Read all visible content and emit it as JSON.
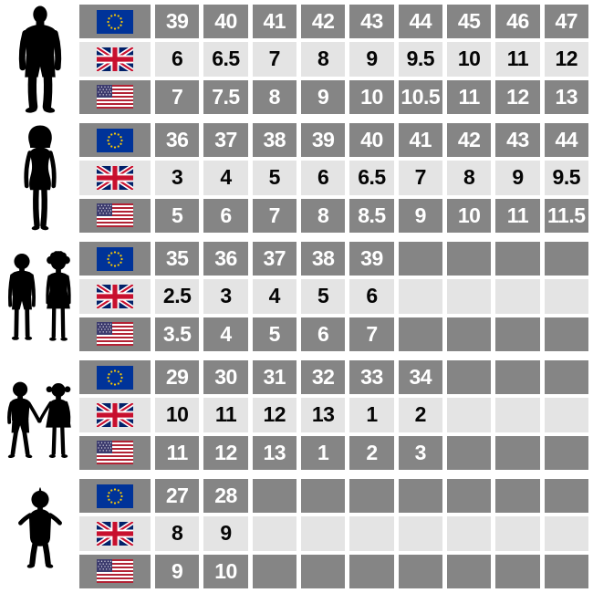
{
  "colors": {
    "row_dark_bg": "#858585",
    "row_light_bg": "#e4e4e4",
    "text_on_dark": "#ffffff",
    "text_on_light": "#050505",
    "silhouette": "#000000",
    "eu_flag_blue": "#003399",
    "eu_star_yellow": "#ffcc00",
    "uk_flag_blue": "#012169",
    "uk_flag_red": "#c8102e",
    "us_flag_red": "#b22234",
    "us_flag_blue": "#3c3b6e"
  },
  "chart_data": {
    "type": "table",
    "columns_per_row": 9,
    "groups": [
      {
        "id": "men",
        "figure": "man-silhouette-icon",
        "rows": [
          {
            "region": "EU",
            "flag": "eu-flag-icon",
            "shade": "dark",
            "values": [
              "39",
              "40",
              "41",
              "42",
              "43",
              "44",
              "45",
              "46",
              "47"
            ]
          },
          {
            "region": "UK",
            "flag": "uk-flag-icon",
            "shade": "light",
            "values": [
              "6",
              "6.5",
              "7",
              "8",
              "9",
              "9.5",
              "10",
              "11",
              "12"
            ]
          },
          {
            "region": "US",
            "flag": "us-flag-icon",
            "shade": "dark",
            "values": [
              "7",
              "7.5",
              "8",
              "9",
              "10",
              "10.5",
              "11",
              "12",
              "13"
            ]
          }
        ]
      },
      {
        "id": "women",
        "figure": "woman-silhouette-icon",
        "rows": [
          {
            "region": "EU",
            "flag": "eu-flag-icon",
            "shade": "dark",
            "values": [
              "36",
              "37",
              "38",
              "39",
              "40",
              "41",
              "42",
              "43",
              "44"
            ]
          },
          {
            "region": "UK",
            "flag": "uk-flag-icon",
            "shade": "light",
            "values": [
              "3",
              "4",
              "5",
              "6",
              "6.5",
              "7",
              "8",
              "9",
              "9.5"
            ]
          },
          {
            "region": "US",
            "flag": "us-flag-icon",
            "shade": "dark",
            "values": [
              "5",
              "6",
              "7",
              "8",
              "8.5",
              "9",
              "10",
              "11",
              "11.5"
            ]
          }
        ]
      },
      {
        "id": "children",
        "figure": "children-silhouette-icon",
        "rows": [
          {
            "region": "EU",
            "flag": "eu-flag-icon",
            "shade": "dark",
            "values": [
              "35",
              "36",
              "37",
              "38",
              "39",
              "",
              "",
              "",
              ""
            ]
          },
          {
            "region": "UK",
            "flag": "uk-flag-icon",
            "shade": "light",
            "values": [
              "2.5",
              "3",
              "4",
              "5",
              "6",
              "",
              "",
              "",
              ""
            ]
          },
          {
            "region": "US",
            "flag": "us-flag-icon",
            "shade": "dark",
            "values": [
              "3.5",
              "4",
              "5",
              "6",
              "7",
              "",
              "",
              "",
              ""
            ]
          }
        ]
      },
      {
        "id": "young-children",
        "figure": "young-children-silhouette-icon",
        "rows": [
          {
            "region": "EU",
            "flag": "eu-flag-icon",
            "shade": "dark",
            "values": [
              "29",
              "30",
              "31",
              "32",
              "33",
              "34",
              "",
              "",
              ""
            ]
          },
          {
            "region": "UK",
            "flag": "uk-flag-icon",
            "shade": "light",
            "values": [
              "10",
              "11",
              "12",
              "13",
              "1",
              "2",
              "",
              "",
              ""
            ]
          },
          {
            "region": "US",
            "flag": "us-flag-icon",
            "shade": "dark",
            "values": [
              "11",
              "12",
              "13",
              "1",
              "2",
              "3",
              "",
              "",
              ""
            ]
          }
        ]
      },
      {
        "id": "toddler",
        "figure": "toddler-silhouette-icon",
        "rows": [
          {
            "region": "EU",
            "flag": "eu-flag-icon",
            "shade": "dark",
            "values": [
              "27",
              "28",
              "",
              "",
              "",
              "",
              "",
              "",
              ""
            ]
          },
          {
            "region": "UK",
            "flag": "uk-flag-icon",
            "shade": "light",
            "values": [
              "8",
              "9",
              "",
              "",
              "",
              "",
              "",
              "",
              ""
            ]
          },
          {
            "region": "US",
            "flag": "us-flag-icon",
            "shade": "dark",
            "values": [
              "9",
              "10",
              "",
              "",
              "",
              "",
              "",
              "",
              ""
            ]
          }
        ]
      }
    ]
  }
}
